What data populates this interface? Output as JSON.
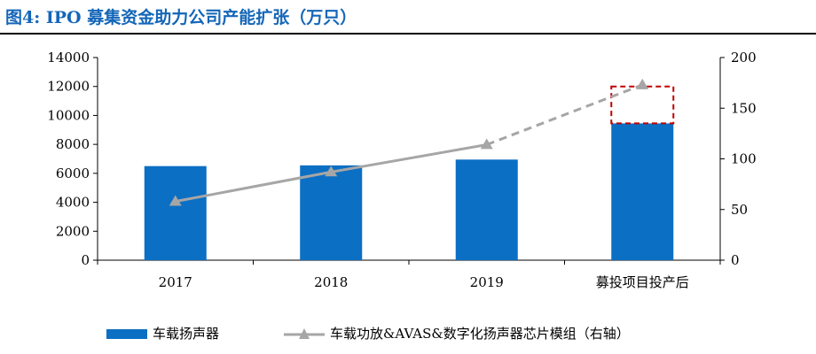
{
  "title": "图4: IPO 募集资金助力公司产能扩张（万只）",
  "chart_data": {
    "type": "bar",
    "categories": [
      "2017",
      "2018",
      "2019",
      "募投项目投产后"
    ],
    "series": [
      {
        "name": "车载扬声器",
        "type": "bar",
        "axis": "left",
        "values": [
          6500,
          6550,
          6950,
          9450
        ],
        "color": "#0b6fc4"
      },
      {
        "name": "车载功放&AVAS&数字化扬声器芯片模组（右轴）",
        "type": "line",
        "axis": "right",
        "values": [
          58,
          87,
          114,
          173
        ],
        "color": "#a6a6a6"
      }
    ],
    "ylim_left": [
      0,
      14000
    ],
    "yticks_left": [
      "0",
      "2000",
      "4000",
      "6000",
      "8000",
      "10000",
      "12000",
      "14000"
    ],
    "ylim_right": [
      0,
      200
    ],
    "yticks_right": [
      "0",
      "50",
      "100",
      "150",
      "200"
    ],
    "highlight": {
      "category": "募投项目投产后",
      "from": 9450,
      "to": 12000,
      "axis": "left",
      "color": "#c00000"
    },
    "dashed_last_segment": true,
    "grid": false,
    "legend_position": "bottom"
  }
}
